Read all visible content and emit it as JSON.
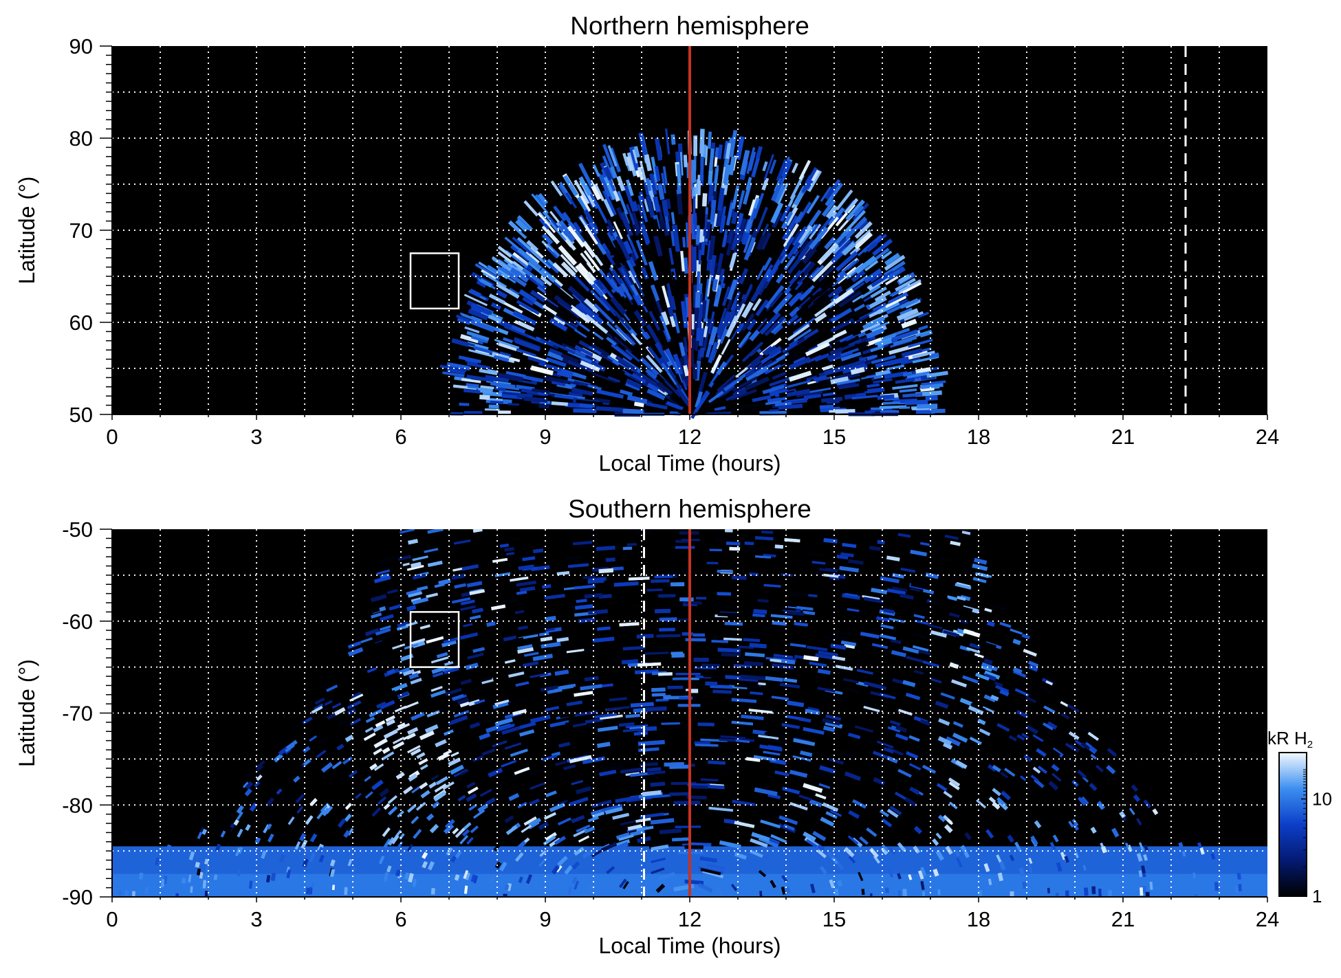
{
  "chart_data": [
    {
      "type": "heatmap",
      "title": "Northern hemisphere",
      "xlabel": "Local Time (hours)",
      "ylabel": "Latitude (°)",
      "xlim": [
        0,
        24
      ],
      "ylim": [
        50,
        90
      ],
      "xticks": [
        "0",
        "3",
        "6",
        "9",
        "12",
        "15",
        "18",
        "21",
        "24"
      ],
      "yticks": [
        "50",
        "60",
        "70",
        "80",
        "90"
      ],
      "grid": true,
      "emission_region": {
        "lt_range": [
          7.0,
          17.2
        ],
        "max_latitude": 80,
        "bright_band_latitude": [
          72,
          79
        ],
        "bright_spot": {
          "lt": 9.7,
          "lat": 67
        }
      },
      "box": {
        "lt": [
          6.2,
          7.2
        ],
        "lat": [
          61.5,
          67.5
        ]
      },
      "noon_line_lt": 12,
      "dashed_line_lt": 22.3
    },
    {
      "type": "heatmap",
      "title": "Southern hemisphere",
      "xlabel": "Local Time (hours)",
      "ylabel": "Latitude (°)",
      "xlim": [
        0,
        24
      ],
      "ylim": [
        -90,
        -50
      ],
      "xticks": [
        "0",
        "3",
        "6",
        "9",
        "12",
        "15",
        "18",
        "21",
        "24"
      ],
      "yticks": [
        "-50",
        "-60",
        "-70",
        "-80",
        "-90"
      ],
      "grid": true,
      "emission_region": {
        "lt_range": [
          0,
          24
        ],
        "bright_arcs_lt": [
          6.5,
          17.8
        ],
        "bright_spot": {
          "lt": 6,
          "lat": -74
        }
      },
      "box": {
        "lt": [
          6.2,
          7.2
        ],
        "lat": [
          -65,
          -59
        ]
      },
      "noon_line_lt": 12,
      "dashed_line_lt": 11.05
    }
  ],
  "colorbar": {
    "label": "kR H",
    "label_sub": "2",
    "scale": "log",
    "range": [
      1,
      30
    ],
    "tick_labels": [
      "1",
      "10"
    ],
    "tick_values": [
      1,
      10
    ]
  },
  "colors": {
    "background": "#000000",
    "emission_dim": "#0a2a9e",
    "emission_mid": "#1e6ae0",
    "emission_bright": "#e8f4ff",
    "noon_line": "#c8321e",
    "grid": "#ffffff"
  }
}
